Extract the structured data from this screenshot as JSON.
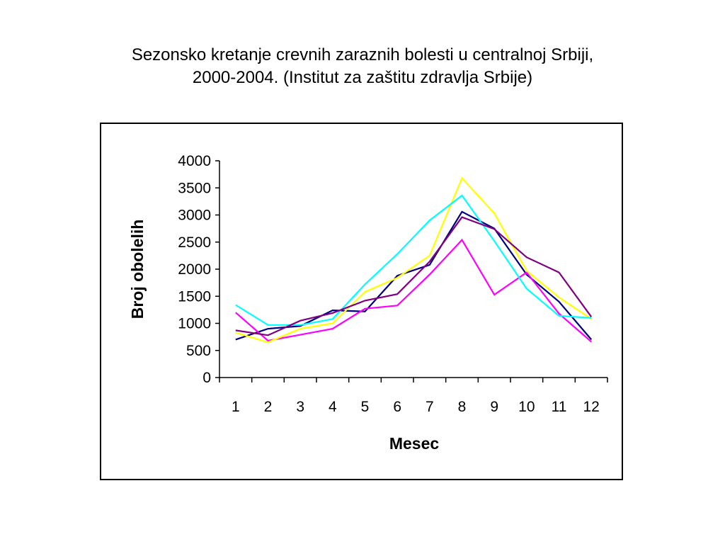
{
  "title_line1": "Sezonsko kretanje crevnih zaraznih bolesti u centralnoj Srbiji,",
  "title_line2": "2000-2004. (Institut za zaštitu zdravlja Srbije)",
  "chart_data": {
    "type": "line",
    "xlabel": "Mesec",
    "ylabel": "Broj obolelih",
    "ylim": [
      0,
      4000
    ],
    "y_ticks": [
      0,
      500,
      1000,
      1500,
      2000,
      2500,
      3000,
      3500,
      4000
    ],
    "x": [
      "1",
      "2",
      "3",
      "4",
      "5",
      "6",
      "7",
      "8",
      "9",
      "10",
      "11",
      "12"
    ],
    "grid": false,
    "legend": "none",
    "series": [
      {
        "color": "#000080",
        "values": [
          700,
          900,
          950,
          1240,
          1220,
          1880,
          2080,
          3060,
          2750,
          1900,
          1400,
          700
        ]
      },
      {
        "color": "#ff00ff",
        "values": [
          1200,
          680,
          790,
          900,
          1270,
          1330,
          1900,
          2540,
          1530,
          1940,
          1180,
          660
        ]
      },
      {
        "color": "#ffff00",
        "values": [
          830,
          650,
          900,
          1000,
          1580,
          1840,
          2250,
          3680,
          3030,
          1970,
          1480,
          1080
        ]
      },
      {
        "color": "#00ffff",
        "values": [
          1340,
          970,
          970,
          1080,
          1720,
          2280,
          2900,
          3360,
          2520,
          1640,
          1140,
          1100
        ]
      },
      {
        "color": "#800080",
        "values": [
          870,
          780,
          1050,
          1190,
          1420,
          1540,
          2140,
          2960,
          2740,
          2220,
          1940,
          1120
        ]
      }
    ]
  }
}
